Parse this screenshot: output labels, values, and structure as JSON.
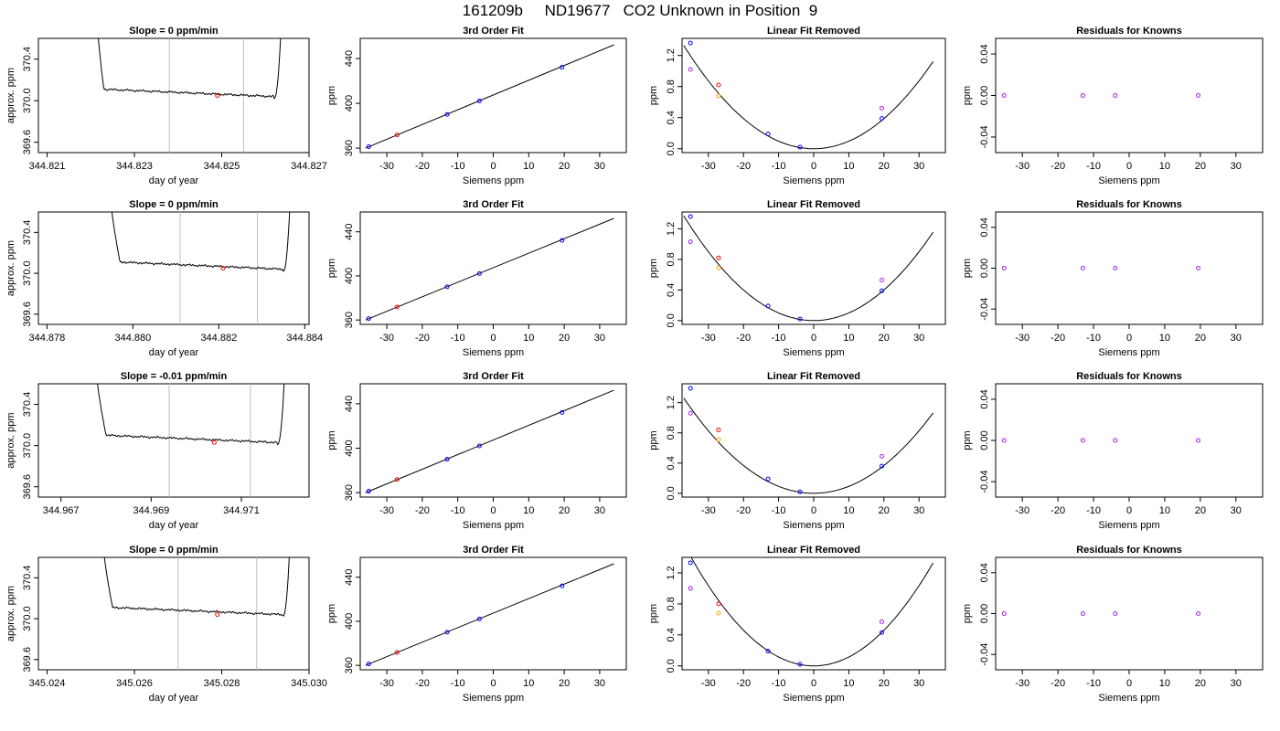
{
  "title": "161209b     ND19677   CO2 Unknown in Position  9",
  "colors": {
    "trace": "#000000",
    "window_lines": "#bebebe",
    "unknown_point": "#ff0000",
    "known_point": "#0000ff",
    "raw_point": "#a020f0",
    "alt_point": "#ffa500",
    "fit_line": "#000000"
  },
  "chart_data": [
    {
      "row": 1,
      "type": "line",
      "panel": "trace",
      "title": "Slope =  0  ppm/min",
      "xlabel": "day of year",
      "ylabel": "approx. ppm",
      "xlim": [
        344.8208,
        344.827
      ],
      "ylim": [
        369.5,
        370.6
      ],
      "xticks": [
        344.821,
        344.823,
        344.825,
        344.827
      ],
      "xtick_labels": [
        "344.821",
        "344.823",
        "344.825",
        "344.827"
      ],
      "yticks": [
        369.6,
        370.0,
        370.4
      ],
      "ytick_labels": [
        "369.6",
        "370.0",
        "370.4"
      ],
      "window_start": 344.8238,
      "window_end": 344.8255,
      "rise_start": 344.8221,
      "level_start": 344.8223,
      "level_end": 344.8262,
      "rise_end": 344.8264,
      "level": 370.06,
      "unknown_point": {
        "x": 344.8249,
        "y": 370.05
      }
    },
    {
      "row": 1,
      "type": "line",
      "panel": "fit",
      "title": "3rd Order Fit",
      "xlabel": "Siemens ppm",
      "ylabel": "ppm",
      "xlim": [
        -37.5,
        37.5
      ],
      "ylim": [
        356,
        458
      ],
      "xticks": [
        -30,
        -20,
        -10,
        0,
        10,
        20,
        30
      ],
      "xtick_labels": [
        "-30",
        "-20",
        "-10",
        "0",
        "10",
        "20",
        "30"
      ],
      "yticks": [
        360,
        400,
        440
      ],
      "ytick_labels": [
        "360",
        "400",
        "440"
      ],
      "line_x": [
        -36,
        34
      ],
      "line_y": [
        360.0,
        452.2
      ],
      "known_points": [
        {
          "x": -35.1,
          "y": 361.3
        },
        {
          "x": -13.0,
          "y": 390.1
        },
        {
          "x": -3.9,
          "y": 402.1
        },
        {
          "x": 19.4,
          "y": 432.2
        }
      ],
      "unknown_points": [
        {
          "x": -27.1,
          "y": 371.8
        }
      ]
    },
    {
      "row": 1,
      "type": "scatter",
      "panel": "linear_removed",
      "title": "Linear Fit Removed",
      "xlabel": "Siemens ppm",
      "ylabel": "ppm",
      "xlim": [
        -37.5,
        37.5
      ],
      "ylim": [
        -0.05,
        1.42
      ],
      "xticks": [
        -30,
        -20,
        -10,
        0,
        10,
        20,
        30
      ],
      "xtick_labels": [
        "-30",
        "-20",
        "-10",
        "0",
        "10",
        "20",
        "30"
      ],
      "yticks": [
        0.0,
        0.4,
        0.8,
        1.2
      ],
      "ytick_labels": [
        "0.0",
        "0.4",
        "0.8",
        "1.2"
      ],
      "curve_coef": 0.00097,
      "known_points": [
        {
          "x": -35.1,
          "y": 1.36
        },
        {
          "x": -13.0,
          "y": 0.19
        },
        {
          "x": -3.9,
          "y": 0.02
        },
        {
          "x": 19.4,
          "y": 0.39
        }
      ],
      "raw_points": [
        {
          "x": -35.1,
          "y": 1.02
        },
        {
          "x": 19.4,
          "y": 0.52
        }
      ],
      "unknown_points": [
        {
          "x": -27.1,
          "y": 0.82
        }
      ],
      "alt_points": [
        {
          "x": -27.1,
          "y": 0.68
        }
      ]
    },
    {
      "row": 1,
      "type": "scatter",
      "panel": "residuals",
      "title": "Residuals for Knowns",
      "xlabel": "Siemens ppm",
      "ylabel": "ppm",
      "xlim": [
        -37.5,
        37.5
      ],
      "ylim": [
        -0.055,
        0.055
      ],
      "xticks": [
        -30,
        -20,
        -10,
        0,
        10,
        20,
        30
      ],
      "xtick_labels": [
        "-30",
        "-20",
        "-10",
        "0",
        "10",
        "20",
        "30"
      ],
      "yticks": [
        -0.04,
        0.0,
        0.04
      ],
      "ytick_labels": [
        "-0.04",
        "0.00",
        "0.04"
      ],
      "points": [
        {
          "x": -35.1,
          "y": 0.0
        },
        {
          "x": -13.0,
          "y": 0.0
        },
        {
          "x": -3.9,
          "y": 0.0
        },
        {
          "x": 19.4,
          "y": 0.0
        }
      ]
    },
    {
      "row": 2,
      "type": "line",
      "panel": "trace",
      "title": "Slope =  0  ppm/min",
      "xlabel": "day of year",
      "ylabel": "approx. ppm",
      "xlim": [
        344.8778,
        344.8841
      ],
      "ylim": [
        369.5,
        370.6
      ],
      "xticks": [
        344.878,
        344.88,
        344.882,
        344.884
      ],
      "xtick_labels": [
        "344.878",
        "344.880",
        "344.882",
        "344.884"
      ],
      "yticks": [
        369.6,
        370.0,
        370.4
      ],
      "ytick_labels": [
        "369.6",
        "370.0",
        "370.4"
      ],
      "window_start": 344.8811,
      "window_end": 344.8829,
      "rise_start": 344.8794,
      "level_start": 344.8797,
      "level_end": 344.8835,
      "rise_end": 344.8837,
      "level": 370.06,
      "unknown_point": {
        "x": 344.8821,
        "y": 370.05
      }
    },
    {
      "row": 2,
      "type": "line",
      "panel": "fit",
      "title": "3rd Order Fit",
      "xlabel": "Siemens ppm",
      "ylabel": "ppm",
      "xlim": [
        -37.5,
        37.5
      ],
      "ylim": [
        356,
        458
      ],
      "xticks": [
        -30,
        -20,
        -10,
        0,
        10,
        20,
        30
      ],
      "xtick_labels": [
        "-30",
        "-20",
        "-10",
        "0",
        "10",
        "20",
        "30"
      ],
      "yticks": [
        360,
        400,
        440
      ],
      "ytick_labels": [
        "360",
        "400",
        "440"
      ],
      "line_x": [
        -36,
        34
      ],
      "line_y": [
        360.0,
        452.2
      ],
      "known_points": [
        {
          "x": -35.1,
          "y": 361.3
        },
        {
          "x": -13.0,
          "y": 390.1
        },
        {
          "x": -3.9,
          "y": 402.1
        },
        {
          "x": 19.4,
          "y": 432.2
        }
      ],
      "unknown_points": [
        {
          "x": -27.1,
          "y": 371.8
        }
      ]
    },
    {
      "row": 2,
      "type": "scatter",
      "panel": "linear_removed",
      "title": "Linear Fit Removed",
      "xlabel": "Siemens ppm",
      "ylabel": "ppm",
      "xlim": [
        -37.5,
        37.5
      ],
      "ylim": [
        -0.05,
        1.42
      ],
      "xticks": [
        -30,
        -20,
        -10,
        0,
        10,
        20,
        30
      ],
      "xtick_labels": [
        "-30",
        "-20",
        "-10",
        "0",
        "10",
        "20",
        "30"
      ],
      "yticks": [
        0.0,
        0.4,
        0.8,
        1.2
      ],
      "ytick_labels": [
        "0.0",
        "0.4",
        "0.8",
        "1.2"
      ],
      "curve_coef": 0.001,
      "known_points": [
        {
          "x": -35.1,
          "y": 1.36
        },
        {
          "x": -13.0,
          "y": 0.19
        },
        {
          "x": -3.9,
          "y": 0.02
        },
        {
          "x": 19.4,
          "y": 0.39
        }
      ],
      "raw_points": [
        {
          "x": -35.1,
          "y": 1.03
        },
        {
          "x": 19.4,
          "y": 0.53
        }
      ],
      "unknown_points": [
        {
          "x": -27.1,
          "y": 0.82
        }
      ],
      "alt_points": [
        {
          "x": -27.1,
          "y": 0.69
        }
      ]
    },
    {
      "row": 2,
      "type": "scatter",
      "panel": "residuals",
      "title": "Residuals for Knowns",
      "xlabel": "Siemens ppm",
      "ylabel": "ppm",
      "xlim": [
        -37.5,
        37.5
      ],
      "ylim": [
        -0.055,
        0.055
      ],
      "xticks": [
        -30,
        -20,
        -10,
        0,
        10,
        20,
        30
      ],
      "xtick_labels": [
        "-30",
        "-20",
        "-10",
        "0",
        "10",
        "20",
        "30"
      ],
      "yticks": [
        -0.04,
        0.0,
        0.04
      ],
      "ytick_labels": [
        "-0.04",
        "0.00",
        "0.04"
      ],
      "points": [
        {
          "x": -35.1,
          "y": 0.0
        },
        {
          "x": -13.0,
          "y": 0.0
        },
        {
          "x": -3.9,
          "y": 0.0
        },
        {
          "x": 19.4,
          "y": 0.0
        }
      ]
    },
    {
      "row": 3,
      "type": "line",
      "panel": "trace",
      "title": "Slope =  -0.01  ppm/min",
      "xlabel": "day of year",
      "ylabel": "approx. ppm",
      "xlim": [
        344.9665,
        344.9725
      ],
      "ylim": [
        369.5,
        370.6
      ],
      "xticks": [
        344.967,
        344.969,
        344.971
      ],
      "xtick_labels": [
        "344.967",
        "344.969",
        "344.971"
      ],
      "yticks": [
        369.6,
        370.0,
        370.4
      ],
      "ytick_labels": [
        "369.6",
        "370.0",
        "370.4"
      ],
      "window_start": 344.9694,
      "window_end": 344.9712,
      "rise_start": 344.9677,
      "level_start": 344.968,
      "level_end": 344.9718,
      "rise_end": 344.972,
      "level": 370.05,
      "unknown_point": {
        "x": 344.9704,
        "y": 370.03
      }
    },
    {
      "row": 3,
      "type": "line",
      "panel": "fit",
      "title": "3rd Order Fit",
      "xlabel": "Siemens ppm",
      "ylabel": "ppm",
      "xlim": [
        -37.5,
        37.5
      ],
      "ylim": [
        356,
        458
      ],
      "xticks": [
        -30,
        -20,
        -10,
        0,
        10,
        20,
        30
      ],
      "xtick_labels": [
        "-30",
        "-20",
        "-10",
        "0",
        "10",
        "20",
        "30"
      ],
      "yticks": [
        360,
        400,
        440
      ],
      "ytick_labels": [
        "360",
        "400",
        "440"
      ],
      "line_x": [
        -36,
        34
      ],
      "line_y": [
        360.0,
        452.2
      ],
      "known_points": [
        {
          "x": -35.1,
          "y": 361.3
        },
        {
          "x": -13.0,
          "y": 390.1
        },
        {
          "x": -3.9,
          "y": 402.1
        },
        {
          "x": 19.4,
          "y": 432.2
        }
      ],
      "unknown_points": [
        {
          "x": -27.1,
          "y": 371.8
        }
      ]
    },
    {
      "row": 3,
      "type": "scatter",
      "panel": "linear_removed",
      "title": "Linear Fit Removed",
      "xlabel": "Siemens ppm",
      "ylabel": "ppm",
      "xlim": [
        -37.5,
        37.5
      ],
      "ylim": [
        -0.05,
        1.45
      ],
      "xticks": [
        -30,
        -20,
        -10,
        0,
        10,
        20,
        30
      ],
      "xtick_labels": [
        "-30",
        "-20",
        "-10",
        "0",
        "10",
        "20",
        "30"
      ],
      "yticks": [
        0.0,
        0.4,
        0.8,
        1.2
      ],
      "ytick_labels": [
        "0.0",
        "0.4",
        "0.8",
        "1.2"
      ],
      "curve_coef": 0.00092,
      "known_points": [
        {
          "x": -35.1,
          "y": 1.39
        },
        {
          "x": -13.0,
          "y": 0.19
        },
        {
          "x": -3.9,
          "y": 0.02
        },
        {
          "x": 19.4,
          "y": 0.36
        }
      ],
      "raw_points": [
        {
          "x": -35.1,
          "y": 1.06
        },
        {
          "x": 19.4,
          "y": 0.49
        }
      ],
      "unknown_points": [
        {
          "x": -27.1,
          "y": 0.84
        }
      ],
      "alt_points": [
        {
          "x": -27.1,
          "y": 0.71
        }
      ]
    },
    {
      "row": 3,
      "type": "scatter",
      "panel": "residuals",
      "title": "Residuals for Knowns",
      "xlabel": "Siemens ppm",
      "ylabel": "ppm",
      "xlim": [
        -37.5,
        37.5
      ],
      "ylim": [
        -0.055,
        0.055
      ],
      "xticks": [
        -30,
        -20,
        -10,
        0,
        10,
        20,
        30
      ],
      "xtick_labels": [
        "-30",
        "-20",
        "-10",
        "0",
        "10",
        "20",
        "30"
      ],
      "yticks": [
        -0.04,
        0.0,
        0.04
      ],
      "ytick_labels": [
        "-0.04",
        "0.00",
        "0.04"
      ],
      "points": [
        {
          "x": -35.1,
          "y": 0.0
        },
        {
          "x": -13.0,
          "y": 0.0
        },
        {
          "x": -3.9,
          "y": 0.0
        },
        {
          "x": 19.4,
          "y": 0.0
        }
      ]
    },
    {
      "row": 4,
      "type": "line",
      "panel": "trace",
      "title": "Slope =  0  ppm/min",
      "xlabel": "day of year",
      "ylabel": "approx. ppm",
      "xlim": [
        345.0238,
        345.03
      ],
      "ylim": [
        369.5,
        370.6
      ],
      "xticks": [
        345.024,
        345.026,
        345.028,
        345.03
      ],
      "xtick_labels": [
        "345.024",
        "345.026",
        "345.028",
        "345.030"
      ],
      "yticks": [
        369.6,
        370.0,
        370.4
      ],
      "ytick_labels": [
        "369.6",
        "370.0",
        "370.4"
      ],
      "window_start": 345.027,
      "window_end": 345.0288,
      "rise_start": 345.0252,
      "level_start": 345.0255,
      "level_end": 345.0294,
      "rise_end": 345.0296,
      "level": 370.06,
      "unknown_point": {
        "x": 345.0279,
        "y": 370.04
      }
    },
    {
      "row": 4,
      "type": "line",
      "panel": "fit",
      "title": "3rd Order Fit",
      "xlabel": "Siemens ppm",
      "ylabel": "ppm",
      "xlim": [
        -37.5,
        37.5
      ],
      "ylim": [
        356,
        458
      ],
      "xticks": [
        -30,
        -20,
        -10,
        0,
        10,
        20,
        30
      ],
      "xtick_labels": [
        "-30",
        "-20",
        "-10",
        "0",
        "10",
        "20",
        "30"
      ],
      "yticks": [
        360,
        400,
        440
      ],
      "ytick_labels": [
        "360",
        "400",
        "440"
      ],
      "line_x": [
        -36,
        34
      ],
      "line_y": [
        360.0,
        452.2
      ],
      "known_points": [
        {
          "x": -35.1,
          "y": 361.3
        },
        {
          "x": -13.0,
          "y": 390.1
        },
        {
          "x": -3.9,
          "y": 402.1
        },
        {
          "x": 19.4,
          "y": 432.2
        }
      ],
      "unknown_points": [
        {
          "x": -27.1,
          "y": 371.8
        }
      ]
    },
    {
      "row": 4,
      "type": "scatter",
      "panel": "linear_removed",
      "title": "Linear Fit Removed",
      "xlabel": "Siemens ppm",
      "ylabel": "ppm",
      "xlim": [
        -37.5,
        37.5
      ],
      "ylim": [
        -0.05,
        1.4
      ],
      "xticks": [
        -30,
        -20,
        -10,
        0,
        10,
        20,
        30
      ],
      "xtick_labels": [
        "-30",
        "-20",
        "-10",
        "0",
        "10",
        "20",
        "30"
      ],
      "yticks": [
        0.0,
        0.4,
        0.8,
        1.2
      ],
      "ytick_labels": [
        "0.0",
        "0.4",
        "0.8",
        "1.2"
      ],
      "curve_coef": 0.00115,
      "known_points": [
        {
          "x": -35.1,
          "y": 1.33
        },
        {
          "x": -13.0,
          "y": 0.19
        },
        {
          "x": -3.9,
          "y": 0.02
        },
        {
          "x": 19.4,
          "y": 0.43
        }
      ],
      "raw_points": [
        {
          "x": -35.1,
          "y": 1.0
        },
        {
          "x": 19.4,
          "y": 0.57
        }
      ],
      "unknown_points": [
        {
          "x": -27.1,
          "y": 0.8
        }
      ],
      "alt_points": [
        {
          "x": -27.1,
          "y": 0.68
        }
      ]
    },
    {
      "row": 4,
      "type": "scatter",
      "panel": "residuals",
      "title": "Residuals for Knowns",
      "xlabel": "Siemens ppm",
      "ylabel": "ppm",
      "xlim": [
        -37.5,
        37.5
      ],
      "ylim": [
        -0.055,
        0.055
      ],
      "xticks": [
        -30,
        -20,
        -10,
        0,
        10,
        20,
        30
      ],
      "xtick_labels": [
        "-30",
        "-20",
        "-10",
        "0",
        "10",
        "20",
        "30"
      ],
      "yticks": [
        -0.04,
        0.0,
        0.04
      ],
      "ytick_labels": [
        "-0.04",
        "0.00",
        "0.04"
      ],
      "points": [
        {
          "x": -35.1,
          "y": 0.0
        },
        {
          "x": -13.0,
          "y": 0.0
        },
        {
          "x": -3.9,
          "y": 0.0
        },
        {
          "x": 19.4,
          "y": 0.0
        }
      ]
    }
  ]
}
